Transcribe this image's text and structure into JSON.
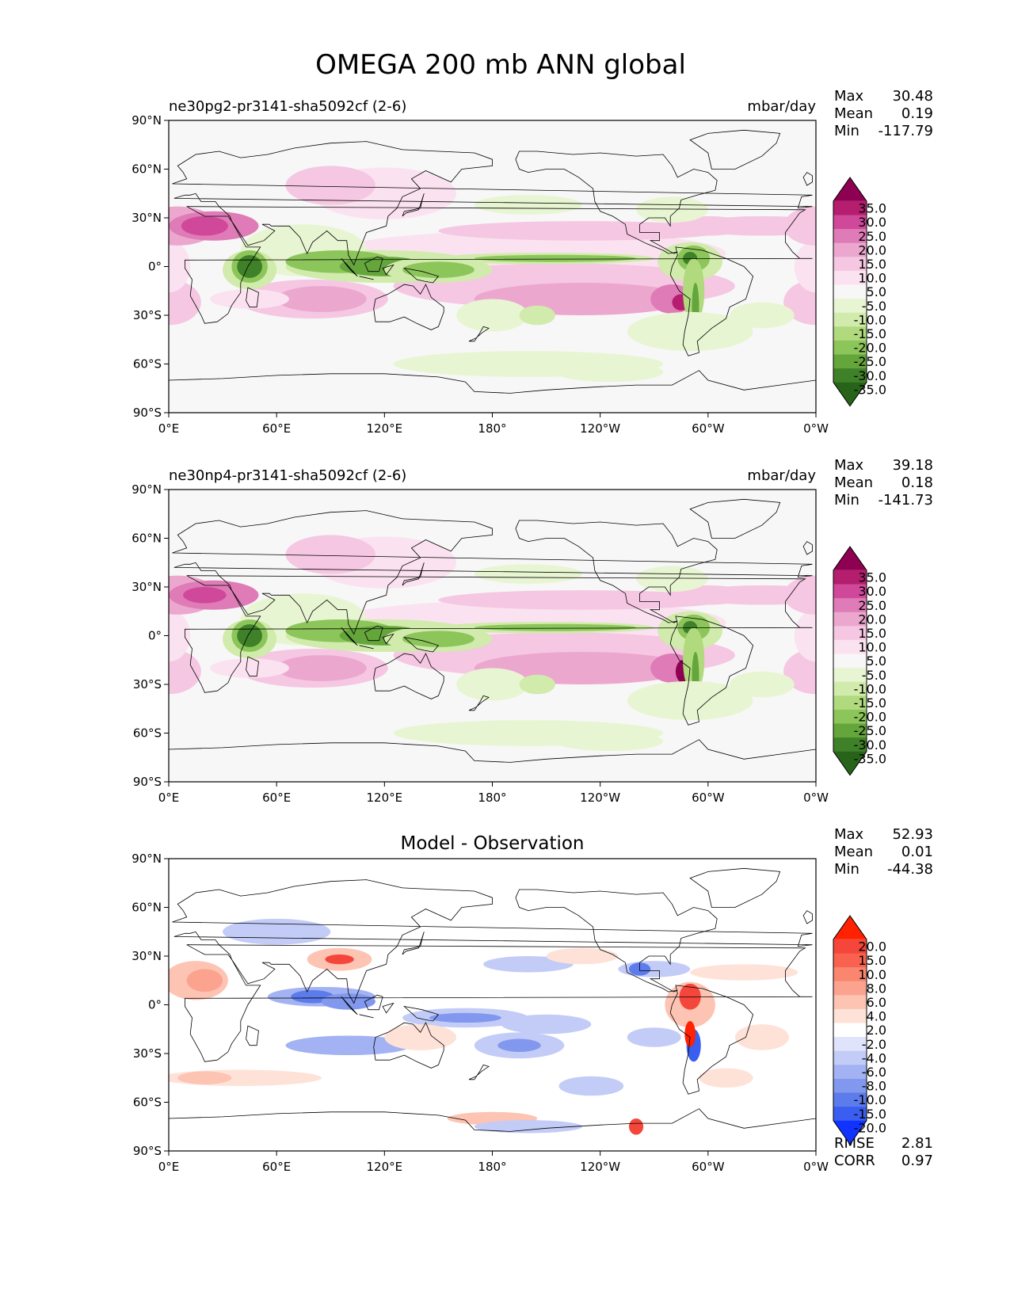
{
  "title": "OMEGA 200 mb ANN global",
  "x_ticks": [
    "0°E",
    "60°E",
    "120°E",
    "180°",
    "120°W",
    "60°W",
    "0°W"
  ],
  "y_ticks": [
    "90°N",
    "60°N",
    "30°N",
    "0°",
    "30°S",
    "60°S",
    "90°S"
  ],
  "panels": [
    {
      "id": "test",
      "left_title": "ne30pg2-pr3141-sha5092cf (2-6)",
      "center_title": "",
      "units": "mbar/day",
      "stats": [
        {
          "label": "Max",
          "value": "30.48"
        },
        {
          "label": "Mean",
          "value": "0.19"
        },
        {
          "label": "Min",
          "value": "-117.79"
        }
      ],
      "extra_stats": [],
      "colorbar": {
        "labels": [
          "35.0",
          "30.0",
          "25.0",
          "20.0",
          "15.0",
          "10.0",
          "5.0",
          "-5.0",
          "-10.0",
          "-15.0",
          "-20.0",
          "-25.0",
          "-30.0",
          "-35.0"
        ],
        "colors": [
          "#8e0152",
          "#b51d6e",
          "#d0489a",
          "#df7bb6",
          "#eca7cf",
          "#f5c7e2",
          "#fbe2f0",
          "#f7f7f7",
          "#e8f5d2",
          "#d0ebab",
          "#b0da7d",
          "#8cc55a",
          "#64a53c",
          "#3f8128",
          "#276419"
        ]
      }
    },
    {
      "id": "ref",
      "left_title": "ne30np4-pr3141-sha5092cf (2-6)",
      "center_title": "",
      "units": "mbar/day",
      "stats": [
        {
          "label": "Max",
          "value": "39.18"
        },
        {
          "label": "Mean",
          "value": "0.18"
        },
        {
          "label": "Min",
          "value": "-141.73"
        }
      ],
      "extra_stats": [],
      "colorbar": {
        "labels": [
          "35.0",
          "30.0",
          "25.0",
          "20.0",
          "15.0",
          "10.0",
          "5.0",
          "-5.0",
          "-10.0",
          "-15.0",
          "-20.0",
          "-25.0",
          "-30.0",
          "-35.0"
        ],
        "colors": [
          "#8e0152",
          "#b51d6e",
          "#d0489a",
          "#df7bb6",
          "#eca7cf",
          "#f5c7e2",
          "#fbe2f0",
          "#f7f7f7",
          "#e8f5d2",
          "#d0ebab",
          "#b0da7d",
          "#8cc55a",
          "#64a53c",
          "#3f8128",
          "#276419"
        ]
      }
    },
    {
      "id": "diff",
      "left_title": "",
      "center_title": "Model - Observation",
      "units": "",
      "stats": [
        {
          "label": "Max",
          "value": "52.93"
        },
        {
          "label": "Mean",
          "value": "0.01"
        },
        {
          "label": "Min",
          "value": "-44.38"
        }
      ],
      "extra_stats": [
        {
          "label": "RMSE",
          "value": "2.81"
        },
        {
          "label": "CORR",
          "value": "0.97"
        }
      ],
      "colorbar": {
        "labels": [
          "20.0",
          "15.0",
          "10.0",
          "8.0",
          "6.0",
          "4.0",
          "2.0",
          "-2.0",
          "-4.0",
          "-6.0",
          "-8.0",
          "-10.0",
          "-15.0",
          "-20.0"
        ],
        "colors": [
          "#ff2200",
          "#f4463a",
          "#f8624e",
          "#fa8670",
          "#fca38f",
          "#fdc3b3",
          "#fee2d8",
          "#ffffff",
          "#dfe3fb",
          "#c2ccf7",
          "#a3b2f2",
          "#8198ee",
          "#5c7ceb",
          "#3a5ef0",
          "#1133ff"
        ]
      }
    }
  ],
  "chart_data": [
    {
      "type": "heatmap",
      "title": "ne30pg2-pr3141-sha5092cf (2-6)",
      "units": "mbar/day",
      "xlim": [
        0,
        360
      ],
      "ylim": [
        -90,
        90
      ],
      "xlabel": "",
      "ylabel": "",
      "features": [
        {
          "lon": 45,
          "lat": 0,
          "value": -35
        },
        {
          "lon": 120,
          "lat": 0,
          "value": -30
        },
        {
          "lon": 150,
          "lat": 0,
          "value": -30
        },
        {
          "lon": 290,
          "lat": 5,
          "value": -35
        },
        {
          "lon": 25,
          "lat": 25,
          "value": 25
        },
        {
          "lon": 285,
          "lat": -20,
          "value": 30
        },
        {
          "lon": 355,
          "lat": -20,
          "value": 20
        }
      ]
    },
    {
      "type": "heatmap",
      "title": "ne30np4-pr3141-sha5092cf (2-6)",
      "units": "mbar/day",
      "xlim": [
        0,
        360
      ],
      "ylim": [
        -90,
        90
      ],
      "xlabel": "",
      "ylabel": "",
      "features": [
        {
          "lon": 45,
          "lat": 0,
          "value": -35
        },
        {
          "lon": 120,
          "lat": 0,
          "value": -30
        },
        {
          "lon": 150,
          "lat": 0,
          "value": -30
        },
        {
          "lon": 290,
          "lat": 5,
          "value": -35
        },
        {
          "lon": 25,
          "lat": 25,
          "value": 25
        },
        {
          "lon": 285,
          "lat": -20,
          "value": 35
        },
        {
          "lon": 355,
          "lat": -20,
          "value": 20
        }
      ]
    },
    {
      "type": "heatmap",
      "title": "Model - Observation",
      "units": "",
      "xlim": [
        0,
        360
      ],
      "ylim": [
        -90,
        90
      ],
      "xlabel": "",
      "ylabel": "",
      "features": [
        {
          "lon": 85,
          "lat": 5,
          "value": -8
        },
        {
          "lon": 95,
          "lat": 30,
          "value": 15
        },
        {
          "lon": 290,
          "lat": 5,
          "value": 15
        },
        {
          "lon": 292,
          "lat": -25,
          "value": -15
        },
        {
          "lon": 15,
          "lat": 15,
          "value": 6
        },
        {
          "lon": 195,
          "lat": -25,
          "value": -6
        }
      ]
    }
  ]
}
